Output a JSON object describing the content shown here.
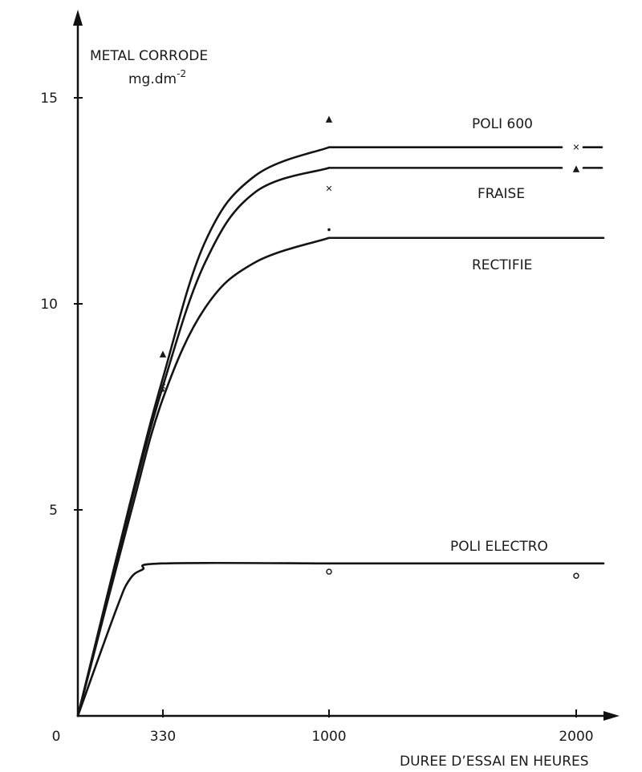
{
  "chart_data": {
    "type": "line",
    "title": "",
    "ylabel_line1": "METAL CORRODE",
    "ylabel_unit": "mg.dm",
    "ylabel_exp": "-2",
    "xlabel": "DUREE D’ESSAI EN HEURES",
    "xlim": [
      0,
      2000
    ],
    "ylim": [
      0,
      15
    ],
    "xticks": [
      {
        "value": 0,
        "label": "0"
      },
      {
        "value": 330,
        "label": "330"
      },
      {
        "value": 1000,
        "label": "1000"
      },
      {
        "value": 2000,
        "label": "2000"
      }
    ],
    "yticks": [
      {
        "value": 5,
        "label": "5"
      },
      {
        "value": 10,
        "label": "10"
      },
      {
        "value": 15,
        "label": "15"
      }
    ],
    "grid": false,
    "series": [
      {
        "name": "POLI 600",
        "x": [
          0,
          200,
          330,
          500,
          700,
          1000,
          2000
        ],
        "y": [
          0,
          5.1,
          8.2,
          11.5,
          13.1,
          13.8,
          13.8
        ],
        "points": [
          {
            "x": 330,
            "y": 8.8
          },
          {
            "x": 1000,
            "y": 14.5
          },
          {
            "x": 2000,
            "y": 13.3
          }
        ],
        "marker": "▲"
      },
      {
        "name": "FRAISE",
        "x": [
          0,
          200,
          330,
          500,
          700,
          1000,
          2000
        ],
        "y": [
          0,
          5.0,
          8.0,
          11.0,
          12.7,
          13.3,
          13.3
        ],
        "points": [
          {
            "x": 330,
            "y": 8.0
          },
          {
            "x": 1000,
            "y": 12.8
          },
          {
            "x": 2000,
            "y": 13.8
          }
        ],
        "marker": "✕"
      },
      {
        "name": "RECTIFIE",
        "x": [
          0,
          200,
          330,
          500,
          700,
          1000,
          2000
        ],
        "y": [
          0,
          4.8,
          7.7,
          9.9,
          11.0,
          11.6,
          11.6
        ],
        "points": [
          {
            "x": 330,
            "y": 7.9
          },
          {
            "x": 1000,
            "y": 11.8
          }
        ],
        "marker": "•"
      },
      {
        "name": "POLI ELECTRO",
        "x": [
          0,
          150,
          200,
          250,
          330,
          1000,
          2000
        ],
        "y": [
          0,
          2.6,
          3.3,
          3.55,
          3.7,
          3.7,
          3.7
        ],
        "points": [
          {
            "x": 1000,
            "y": 3.5
          },
          {
            "x": 2000,
            "y": 3.4
          }
        ],
        "marker": "o"
      }
    ]
  }
}
